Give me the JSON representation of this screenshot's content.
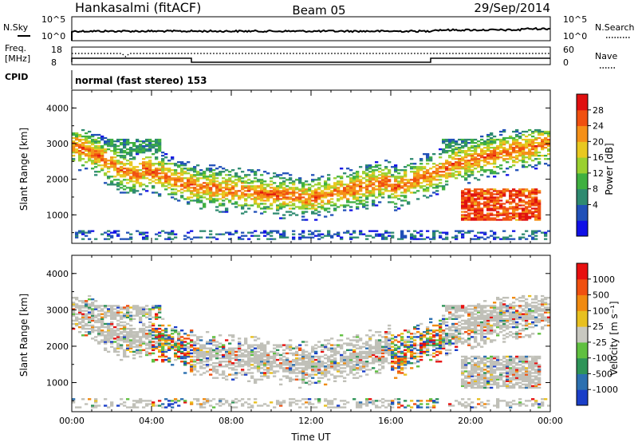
{
  "header": {
    "station": "Hankasalmi (fitACF)",
    "beam": "Beam 05",
    "date": "29/Sep/2014"
  },
  "strips": {
    "nsky_label": "N.Sky",
    "nsky_ticks": [
      "10^5",
      "10^0"
    ],
    "nsearch_label": "N.Search",
    "nsearch_ticks": [
      "10^5",
      "10^0"
    ],
    "freq_label_1": "Freq.",
    "freq_label_2": "[MHz]",
    "freq_ticks": [
      "18",
      "8"
    ],
    "nave_label": "Nave",
    "nave_ticks": [
      "60",
      "0"
    ],
    "cpid_label": "CPID",
    "cpid_text": "normal (fast stereo) 153"
  },
  "colors": {
    "power_scale": [
      "#1010e6",
      "#2050b8",
      "#2e8a70",
      "#3fb040",
      "#9ad030",
      "#e8c820",
      "#f59018",
      "#f05010",
      "#e01010"
    ],
    "velocity_scale": [
      "#1a3ec8",
      "#2c70b0",
      "#2e9458",
      "#60c040",
      "#c8c8c0",
      "#e8c020",
      "#f08a10",
      "#f05010",
      "#e81010"
    ],
    "ground_scatter": "#c0c0b8"
  },
  "chart_data": [
    {
      "type": "heatmap",
      "parameter": "Power",
      "ylabel": "Slant Range [km]",
      "xlabel": "",
      "xlim_hours": [
        0,
        24
      ],
      "ylim": [
        200,
        4500
      ],
      "y_ticks": [
        "4000",
        "3000",
        "2000",
        "1000"
      ],
      "x_ticks": [
        "00:00",
        "04:00",
        "08:00",
        "12:00",
        "16:00",
        "20:00",
        "00:00"
      ],
      "colorbar_label": "Power [dB]",
      "colorbar_ticks": [
        "28",
        "24",
        "20",
        "16",
        "12",
        "8",
        "4"
      ],
      "colorbar_range": [
        0,
        32
      ]
    },
    {
      "type": "heatmap",
      "parameter": "Velocity",
      "ylabel": "Slant Range [km]",
      "xlabel": "Time UT",
      "xlim_hours": [
        0,
        24
      ],
      "ylim": [
        200,
        4500
      ],
      "y_ticks": [
        "4000",
        "3000",
        "2000",
        "1000"
      ],
      "x_ticks": [
        "00:00",
        "04:00",
        "08:00",
        "12:00",
        "16:00",
        "20:00",
        "00:00"
      ],
      "colorbar_label": "Velocity [m s⁻¹]",
      "colorbar_ticks": [
        "1000",
        "500",
        "100",
        "25",
        "-25",
        "-100",
        "-500",
        "-1000"
      ]
    }
  ]
}
